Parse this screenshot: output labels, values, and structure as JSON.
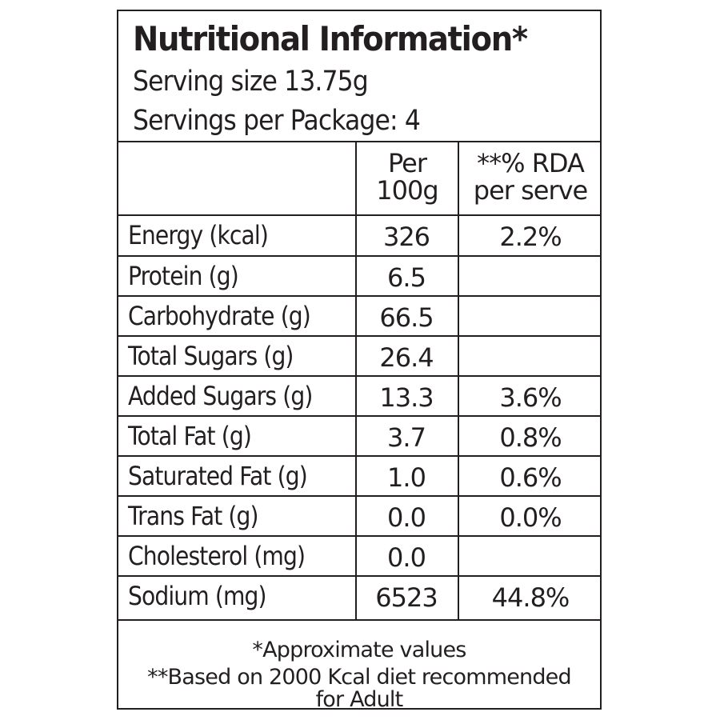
{
  "header": {
    "title": "Nutritional Information*",
    "serving_size": "Serving size 13.75g",
    "servings_per_package": "Servings per Package: 4"
  },
  "columns": {
    "per_100g_line1": "Per",
    "per_100g_line2": "100g",
    "rda_line1": "**% RDA",
    "rda_line2": "per serve"
  },
  "rows": [
    {
      "name": "Energy (kcal)",
      "per_100g": "326",
      "rda": "2.2%"
    },
    {
      "name": "Protein (g)",
      "per_100g": "6.5",
      "rda": ""
    },
    {
      "name": "Carbohydrate (g)",
      "per_100g": "66.5",
      "rda": ""
    },
    {
      "name": "Total Sugars (g)",
      "per_100g": "26.4",
      "rda": ""
    },
    {
      "name": "Added Sugars (g)",
      "per_100g": "13.3",
      "rda": "3.6%"
    },
    {
      "name": "Total Fat (g)",
      "per_100g": "3.7",
      "rda": "0.8%"
    },
    {
      "name": "Saturated Fat (g)",
      "per_100g": "1.0",
      "rda": "0.6%"
    },
    {
      "name": "Trans Fat (g)",
      "per_100g": "0.0",
      "rda": "0.0%"
    },
    {
      "name": "Cholesterol (mg)",
      "per_100g": "0.0",
      "rda": ""
    },
    {
      "name": "Sodium (mg)",
      "per_100g": "6523",
      "rda": "44.8%"
    }
  ],
  "footer": {
    "note1": "*Approximate values",
    "note2": "**Based on 2000 Kcal diet recommended",
    "note3": "for Adult"
  }
}
